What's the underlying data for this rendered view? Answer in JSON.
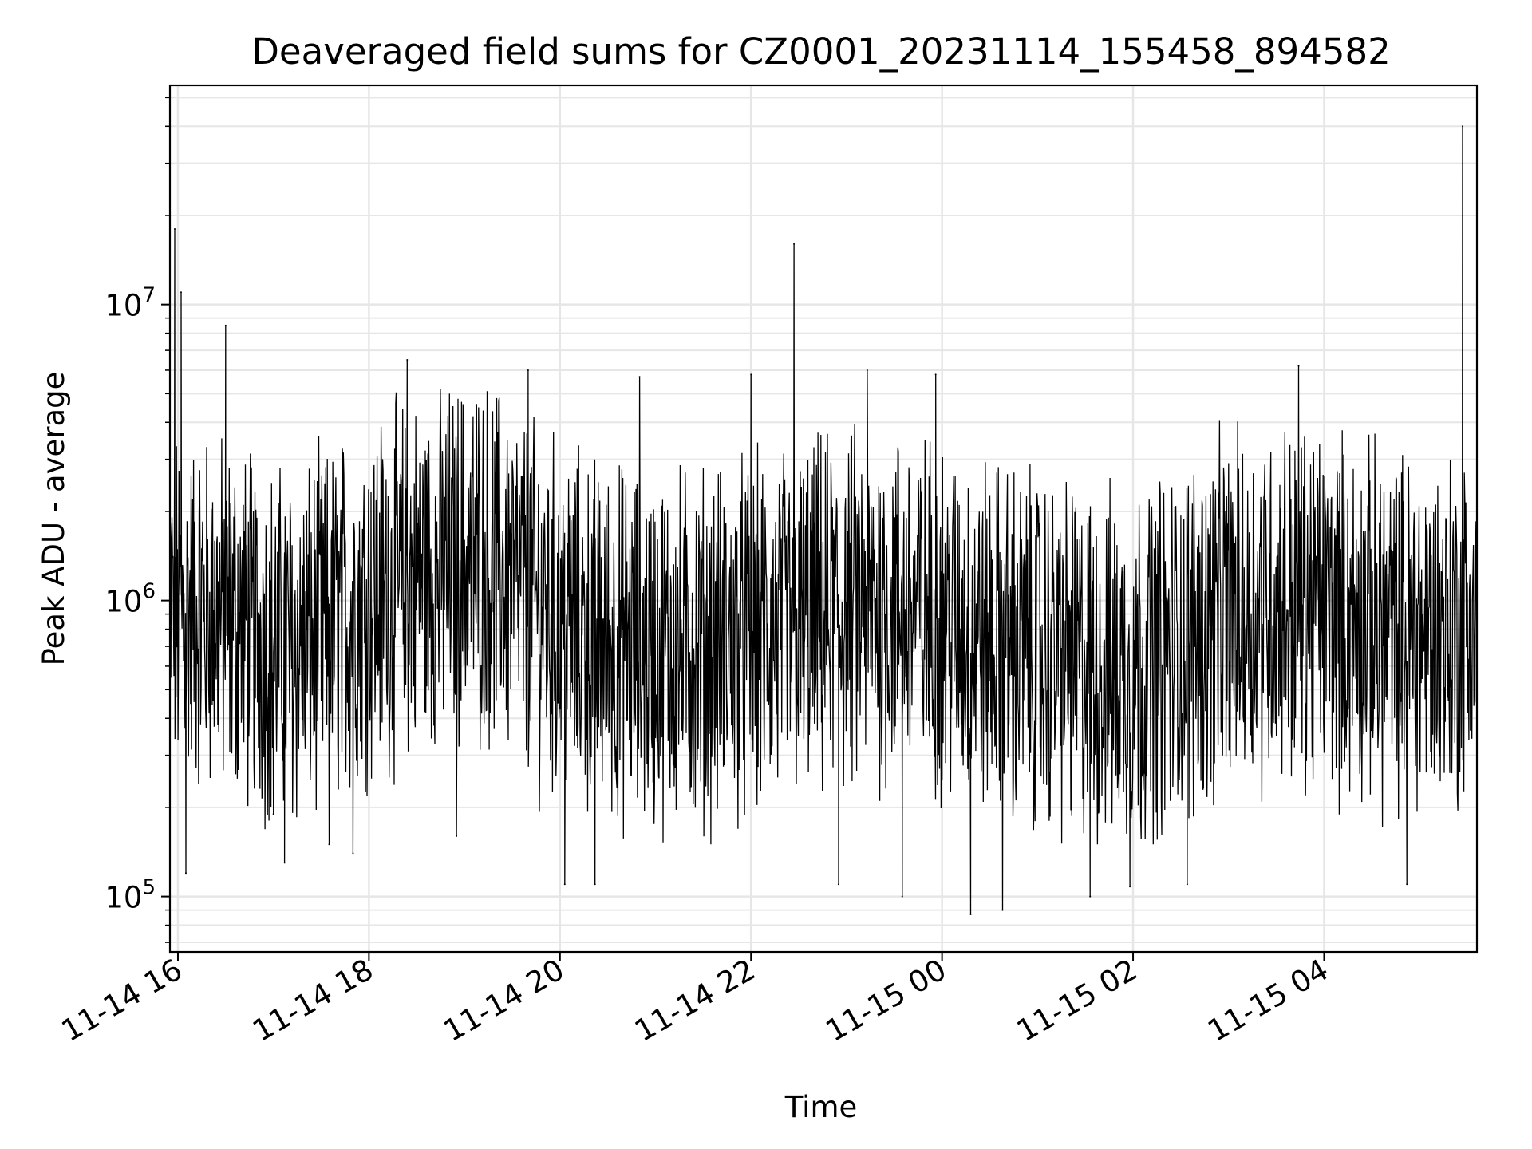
{
  "chart_data": {
    "type": "line",
    "title": "Deaveraged field sums for CZ0001_20231114_155458_894582",
    "xlabel": "Time",
    "ylabel": "Peak ADU - average",
    "yscale": "log",
    "ylim": [
      65000,
      55000000
    ],
    "xlim": [
      "2023-11-14 15:55",
      "2023-11-15 05:36"
    ],
    "x_ticks": [
      {
        "t": "2023-11-14 16:00",
        "label": "11-14 16"
      },
      {
        "t": "2023-11-14 18:00",
        "label": "11-14 18"
      },
      {
        "t": "2023-11-14 20:00",
        "label": "11-14 20"
      },
      {
        "t": "2023-11-14 22:00",
        "label": "11-14 22"
      },
      {
        "t": "2023-11-15 00:00",
        "label": "11-15 00"
      },
      {
        "t": "2023-11-15 02:00",
        "label": "11-15 02"
      },
      {
        "t": "2023-11-15 04:00",
        "label": "11-15 04"
      }
    ],
    "y_ticks": [
      {
        "value": 100000,
        "base": "10",
        "exp": "5"
      },
      {
        "value": 1000000,
        "base": "10",
        "exp": "6"
      },
      {
        "value": 10000000,
        "base": "10",
        "exp": "7"
      }
    ],
    "grid": true,
    "line_color": "#000000",
    "grid_color": "#e6e6e6",
    "series": [
      {
        "values": [
          {
            "x": "2023-11-14 15:55",
            "y": 600000
          },
          {
            "x": "2023-11-14 15:58",
            "y": 18000000
          },
          {
            "x": "2023-11-14 16:02",
            "y": 11000000
          },
          {
            "x": "2023-11-14 16:05",
            "y": 120000
          },
          {
            "x": "2023-11-14 16:30",
            "y": 8500000
          },
          {
            "x": "2023-11-14 17:00",
            "y": 190000
          },
          {
            "x": "2023-11-14 17:07",
            "y": 130000
          },
          {
            "x": "2023-11-14 17:35",
            "y": 150000
          },
          {
            "x": "2023-11-14 17:50",
            "y": 140000
          },
          {
            "x": "2023-11-14 18:24",
            "y": 6500000
          },
          {
            "x": "2023-11-14 18:55",
            "y": 160000
          },
          {
            "x": "2023-11-14 19:40",
            "y": 6000000
          },
          {
            "x": "2023-11-14 20:03",
            "y": 110000
          },
          {
            "x": "2023-11-14 20:22",
            "y": 110000
          },
          {
            "x": "2023-11-14 20:50",
            "y": 5700000
          },
          {
            "x": "2023-11-14 22:00",
            "y": 5800000
          },
          {
            "x": "2023-11-14 22:27",
            "y": 16000000
          },
          {
            "x": "2023-11-14 22:55",
            "y": 110000
          },
          {
            "x": "2023-11-14 23:13",
            "y": 6000000
          },
          {
            "x": "2023-11-14 23:35",
            "y": 100000
          },
          {
            "x": "2023-11-14 23:56",
            "y": 5800000
          },
          {
            "x": "2023-11-15 00:18",
            "y": 87000
          },
          {
            "x": "2023-11-15 00:38",
            "y": 90000
          },
          {
            "x": "2023-11-15 01:33",
            "y": 100000
          },
          {
            "x": "2023-11-15 01:58",
            "y": 108000
          },
          {
            "x": "2023-11-15 02:34",
            "y": 110000
          },
          {
            "x": "2023-11-15 03:44",
            "y": 6200000
          },
          {
            "x": "2023-11-15 04:52",
            "y": 110000
          },
          {
            "x": "2023-11-15 05:27",
            "y": 40000000
          },
          {
            "x": "2023-11-15 05:36",
            "y": 1000000
          }
        ]
      }
    ]
  }
}
